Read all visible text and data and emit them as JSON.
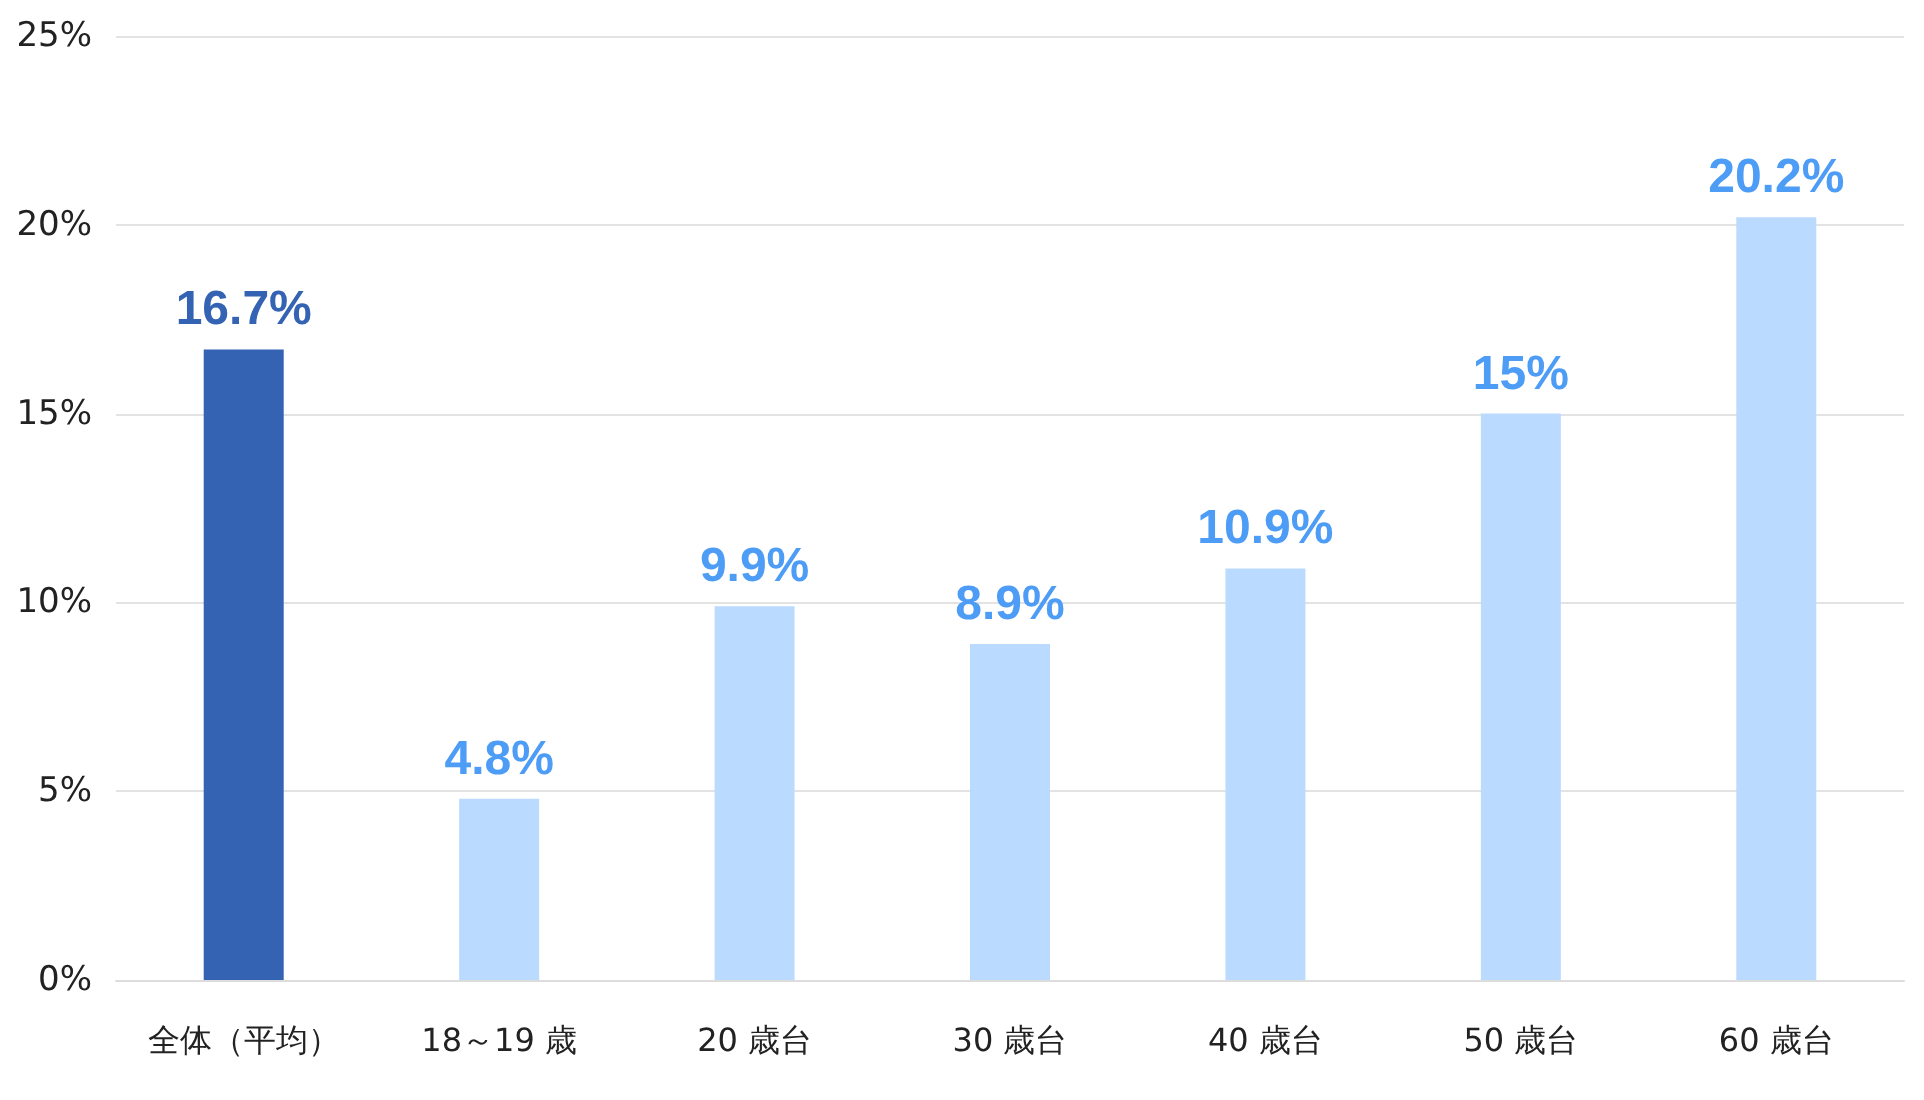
{
  "chart_data": {
    "type": "bar",
    "categories": [
      "全体（平均）",
      "18～19 歳",
      "20 歳台",
      "30 歳台",
      "40 歳台",
      "50 歳台",
      "60 歳台"
    ],
    "values": [
      16.7,
      4.8,
      9.9,
      8.9,
      10.9,
      15,
      20.2
    ],
    "colors": [
      "#3563b3",
      "#bbdaff",
      "#bbdaff",
      "#bbdaff",
      "#bbdaff",
      "#bbdaff",
      "#bbdaff"
    ],
    "value_labels": [
      "16.7%",
      "4.8%",
      "9.9%",
      "8.9%",
      "10.9%",
      "15%",
      "20.2%"
    ],
    "ylim": [
      0,
      25
    ],
    "yticks": [
      {
        "value": 0,
        "label": "0%"
      },
      {
        "value": 5,
        "label": "5%"
      },
      {
        "value": 10,
        "label": "10%"
      },
      {
        "value": 15,
        "label": "15%"
      },
      {
        "value": 20,
        "label": "20%"
      },
      {
        "value": 25,
        "label": "25%"
      }
    ],
    "grid": "y"
  }
}
